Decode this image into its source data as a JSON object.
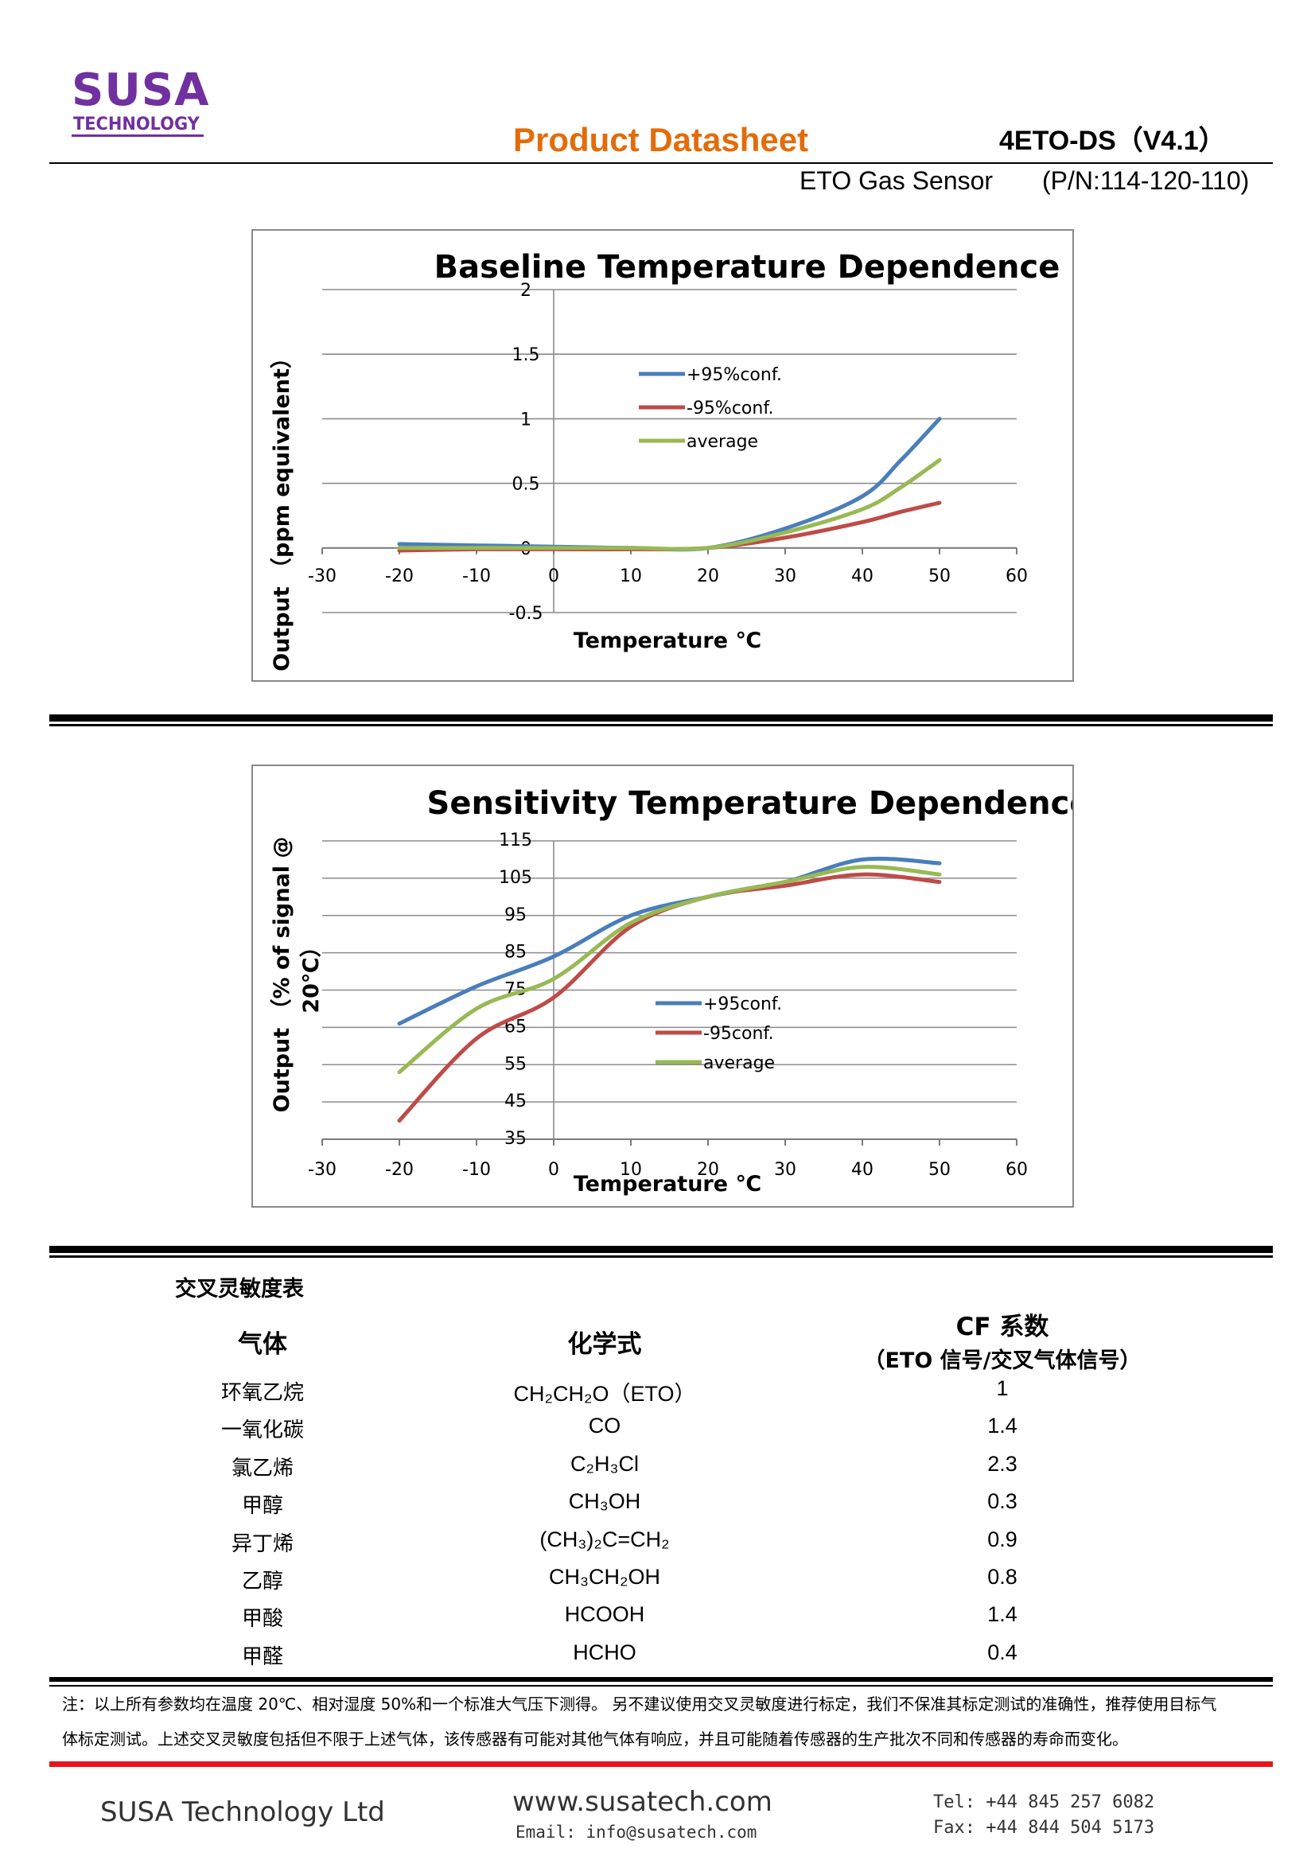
{
  "header": {
    "logo_main": "SUSA",
    "logo_sub": "TECHNOLOGY",
    "title": "Product Datasheet",
    "doc_code": "4ETO-DS（V4.1）",
    "product": "ETO Gas Sensor",
    "part_number": "(P/N:114-120-110)"
  },
  "charts": [
    {
      "title": "Baseline Temperature Dependence",
      "xlabel": "Temperature ℃",
      "ylabel": "Output （ppm equivalent）",
      "x_ticks": [
        "-30",
        "-20",
        "-10",
        "0",
        "10",
        "20",
        "30",
        "40",
        "50",
        "60"
      ],
      "y_ticks": [
        "2",
        "1.5",
        "1",
        "0.5",
        "0",
        "-0.5"
      ],
      "legend": [
        "+95%conf.",
        "-95%conf.",
        "average"
      ]
    },
    {
      "title": "Sensitivity Temperature Dependence",
      "xlabel": "Temperature ℃",
      "ylabel_line1": "Output （% of signal @",
      "ylabel_line2": "20℃）",
      "x_ticks": [
        "-30",
        "-20",
        "-10",
        "0",
        "10",
        "20",
        "30",
        "40",
        "50",
        "60"
      ],
      "y_ticks": [
        "115",
        "105",
        "95",
        "85",
        "75",
        "65",
        "55",
        "45",
        "35"
      ],
      "legend": [
        "+95conf.",
        "-95conf.",
        "average"
      ]
    }
  ],
  "chart_data": [
    {
      "type": "line",
      "title": "Baseline Temperature Dependence",
      "xlabel": "Temperature ℃",
      "ylabel": "Output （ppm equivalent）",
      "xlim": [
        -30,
        60
      ],
      "ylim": [
        -0.5,
        2
      ],
      "grid": true,
      "legend_position": "center-right",
      "x": [
        -20,
        -10,
        0,
        10,
        20,
        30,
        40,
        45,
        50
      ],
      "series": [
        {
          "name": "+95%conf.",
          "color": "#4a7ebb",
          "values": [
            0.03,
            0.02,
            0.01,
            0.0,
            0.0,
            0.15,
            0.4,
            0.68,
            1.0
          ]
        },
        {
          "name": "-95%conf.",
          "color": "#be4b48",
          "values": [
            -0.02,
            -0.01,
            -0.01,
            -0.01,
            0.0,
            0.08,
            0.2,
            0.28,
            0.35
          ]
        },
        {
          "name": "average",
          "color": "#98b954",
          "values": [
            0.0,
            0.0,
            0.0,
            0.0,
            0.0,
            0.12,
            0.3,
            0.47,
            0.68
          ]
        }
      ]
    },
    {
      "type": "line",
      "title": "Sensitivity Temperature Dependence",
      "xlabel": "Temperature ℃",
      "ylabel": "Output （% of signal @ 20℃）",
      "xlim": [
        -30,
        60
      ],
      "ylim": [
        35,
        115
      ],
      "grid": true,
      "legend_position": "center",
      "x": [
        -20,
        -10,
        0,
        10,
        20,
        30,
        40,
        50
      ],
      "series": [
        {
          "name": "+95conf.",
          "color": "#4a7ebb",
          "values": [
            66,
            76,
            84,
            95,
            100,
            104,
            110,
            109
          ]
        },
        {
          "name": "-95conf.",
          "color": "#be4b48",
          "values": [
            40,
            62,
            73,
            92,
            100,
            103,
            106,
            104
          ]
        },
        {
          "name": "average",
          "color": "#98b954",
          "values": [
            53,
            70,
            78,
            93,
            100,
            104,
            108,
            106
          ]
        }
      ]
    }
  ],
  "table": {
    "caption": "交叉灵敏度表",
    "headers": [
      "气体",
      "化学式",
      "CF 系数"
    ],
    "cf_subheader": "（ETO 信号/交叉气体信号）",
    "rows": [
      {
        "gas": "环氧乙烷",
        "formula": "CH₂CH₂O（ETO）",
        "cf": "1"
      },
      {
        "gas": "一氧化碳",
        "formula": "CO",
        "cf": "1.4"
      },
      {
        "gas": "氯乙烯",
        "formula": "C₂H₃Cl",
        "cf": "2.3"
      },
      {
        "gas": "甲醇",
        "formula": "CH₃OH",
        "cf": "0.3"
      },
      {
        "gas": "异丁烯",
        "formula": "(CH₃)₂C=CH₂",
        "cf": "0.9"
      },
      {
        "gas": "乙醇",
        "formula": "CH₃CH₂OH",
        "cf": "0.8"
      },
      {
        "gas": "甲酸",
        "formula": "HCOOH",
        "cf": "1.4"
      },
      {
        "gas": "甲醛",
        "formula": "HCHO",
        "cf": "0.4"
      }
    ]
  },
  "note": {
    "line1": "注：以上所有参数均在温度 20℃、相对湿度 50%和一个标准大气压下测得。 另不建议使用交叉灵敏度进行标定，我们不保准其标定测试的准确性，推荐使用目标气",
    "line2": "体标定测试。上述交叉灵敏度包括但不限于上述气体，该传感器有可能对其他气体有响应，并且可能随着传感器的生产批次不同和传感器的寿命而变化。"
  },
  "footer": {
    "company": "SUSA Technology Ltd",
    "website": "www.susatech.com",
    "email": "Email: info@susatech.com",
    "tel": "Tel: +44 845 257 6082",
    "fax": "Fax: +44 844 504 5173"
  }
}
